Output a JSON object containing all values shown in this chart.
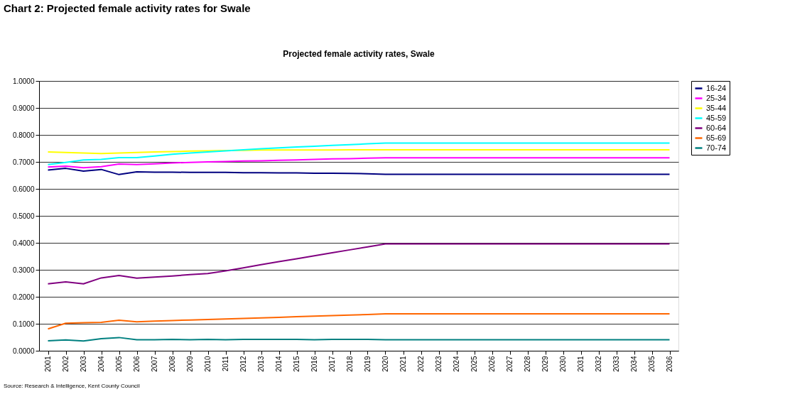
{
  "chart_data": {
    "type": "line",
    "title": "Chart 2: Projected female activity rates for Swale",
    "subtitle": "Projected female activity rates, Swale",
    "annotations": [
      "Source: Research & Intelligence, Kent County Council"
    ],
    "categories": [
      "2001",
      "2002",
      "2003",
      "2004",
      "2005",
      "2006",
      "2007",
      "2008",
      "2009",
      "2010",
      "2011",
      "2012",
      "2013",
      "2014",
      "2015",
      "2016",
      "2017",
      "2018",
      "2019",
      "2020",
      "2021",
      "2022",
      "2023",
      "2024",
      "2025",
      "2026",
      "2027",
      "2028",
      "2029",
      "2030",
      "2031",
      "2032",
      "2033",
      "2034",
      "2035",
      "2036"
    ],
    "series": [
      {
        "name": "16-24",
        "color": "#000080",
        "values": [
          0.67,
          0.676,
          0.666,
          0.672,
          0.653,
          0.663,
          0.662,
          0.662,
          0.661,
          0.661,
          0.661,
          0.66,
          0.66,
          0.659,
          0.659,
          0.658,
          0.658,
          0.657,
          0.656,
          0.654,
          0.654,
          0.654,
          0.654,
          0.654,
          0.654,
          0.654,
          0.654,
          0.654,
          0.654,
          0.654,
          0.654,
          0.654,
          0.654,
          0.654,
          0.654,
          0.654
        ]
      },
      {
        "name": "25-34",
        "color": "#ff00ff",
        "values": [
          0.681,
          0.684,
          0.678,
          0.682,
          0.692,
          0.69,
          0.693,
          0.696,
          0.698,
          0.7,
          0.701,
          0.703,
          0.704,
          0.706,
          0.707,
          0.709,
          0.711,
          0.712,
          0.714,
          0.715,
          0.715,
          0.715,
          0.715,
          0.715,
          0.715,
          0.715,
          0.715,
          0.715,
          0.715,
          0.715,
          0.715,
          0.715,
          0.715,
          0.715,
          0.715,
          0.715
        ]
      },
      {
        "name": "35-44",
        "color": "#ffff00",
        "values": [
          0.737,
          0.735,
          0.733,
          0.731,
          0.733,
          0.735,
          0.737,
          0.738,
          0.74,
          0.741,
          0.742,
          0.743,
          0.744,
          0.744,
          0.744,
          0.744,
          0.744,
          0.745,
          0.745,
          0.745,
          0.745,
          0.745,
          0.745,
          0.745,
          0.745,
          0.745,
          0.745,
          0.745,
          0.745,
          0.745,
          0.745,
          0.745,
          0.745,
          0.745,
          0.745,
          0.745
        ]
      },
      {
        "name": "45-59",
        "color": "#00ffff",
        "values": [
          0.69,
          0.698,
          0.707,
          0.709,
          0.716,
          0.716,
          0.722,
          0.728,
          0.733,
          0.737,
          0.741,
          0.745,
          0.749,
          0.752,
          0.755,
          0.758,
          0.761,
          0.764,
          0.767,
          0.77,
          0.77,
          0.77,
          0.77,
          0.77,
          0.77,
          0.77,
          0.77,
          0.77,
          0.77,
          0.77,
          0.77,
          0.77,
          0.77,
          0.77,
          0.77,
          0.77
        ]
      },
      {
        "name": "60-64",
        "color": "#800080",
        "values": [
          0.248,
          0.255,
          0.248,
          0.27,
          0.279,
          0.269,
          0.273,
          0.277,
          0.282,
          0.286,
          0.296,
          0.307,
          0.319,
          0.33,
          0.341,
          0.352,
          0.363,
          0.374,
          0.385,
          0.396,
          0.396,
          0.396,
          0.396,
          0.396,
          0.396,
          0.396,
          0.396,
          0.396,
          0.396,
          0.396,
          0.396,
          0.396,
          0.396,
          0.396,
          0.396,
          0.396
        ]
      },
      {
        "name": "65-69",
        "color": "#ff6600",
        "values": [
          0.081,
          0.102,
          0.104,
          0.105,
          0.113,
          0.107,
          0.11,
          0.112,
          0.114,
          0.116,
          0.118,
          0.12,
          0.122,
          0.124,
          0.126,
          0.128,
          0.13,
          0.132,
          0.134,
          0.137,
          0.137,
          0.137,
          0.137,
          0.137,
          0.137,
          0.137,
          0.137,
          0.137,
          0.137,
          0.137,
          0.137,
          0.137,
          0.137,
          0.137,
          0.137,
          0.137
        ]
      },
      {
        "name": "70-74",
        "color": "#008080",
        "values": [
          0.037,
          0.04,
          0.036,
          0.045,
          0.049,
          0.041,
          0.041,
          0.042,
          0.041,
          0.042,
          0.041,
          0.042,
          0.042,
          0.042,
          0.042,
          0.041,
          0.042,
          0.042,
          0.042,
          0.041,
          0.041,
          0.041,
          0.041,
          0.041,
          0.041,
          0.041,
          0.041,
          0.041,
          0.041,
          0.041,
          0.041,
          0.041,
          0.041,
          0.041,
          0.041,
          0.041
        ]
      }
    ],
    "ylim": [
      0,
      1
    ],
    "yticks": [
      {
        "value": 0,
        "label": "0.0000"
      },
      {
        "value": 0.1,
        "label": "0.1000"
      },
      {
        "value": 0.2,
        "label": "0.2000"
      },
      {
        "value": 0.3,
        "label": "0.3000"
      },
      {
        "value": 0.4,
        "label": "0.4000"
      },
      {
        "value": 0.5,
        "label": "0.5000"
      },
      {
        "value": 0.6,
        "label": "0.6000"
      },
      {
        "value": 0.7,
        "label": "0.7000"
      },
      {
        "value": 0.8,
        "label": "0.8000"
      },
      {
        "value": 0.9,
        "label": "0.9000"
      },
      {
        "value": 1,
        "label": "1.0000"
      }
    ],
    "grid": "y",
    "legend": "right",
    "marker": "none",
    "line_style": "solid"
  }
}
